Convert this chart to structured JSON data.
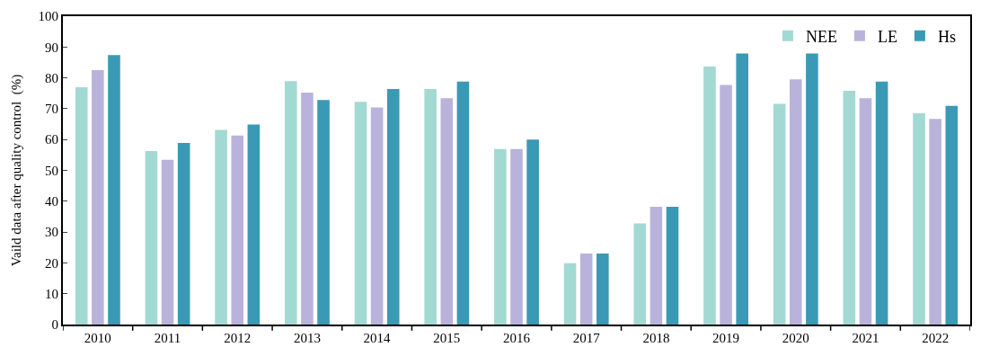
{
  "chart_data": {
    "type": "bar",
    "ylabel": "Vaild data after quality control  (%)",
    "categories": [
      "2010",
      "2011",
      "2012",
      "2013",
      "2014",
      "2015",
      "2016",
      "2017",
      "2018",
      "2019",
      "2020",
      "2021",
      "2022"
    ],
    "series": [
      {
        "name": "NEE",
        "color": "#a3d9d3",
        "values": [
          77,
          56.3,
          63.1,
          78.9,
          72.2,
          76.4,
          56.9,
          19.9,
          32.8,
          83.7,
          71.6,
          75.8,
          68.5
        ]
      },
      {
        "name": "LE",
        "color": "#b9b3dc",
        "values": [
          82.5,
          53.4,
          61.3,
          75.2,
          70.4,
          73.4,
          56.9,
          23,
          38.2,
          77.7,
          79.5,
          73.4,
          66.7
        ]
      },
      {
        "name": "Hs",
        "color": "#3a9ab5",
        "values": [
          87.4,
          58.9,
          64.9,
          72.8,
          76.4,
          78.8,
          60,
          23,
          38.2,
          87.9,
          87.9,
          78.8,
          70.9
        ]
      }
    ],
    "ylim": [
      0,
      100
    ],
    "yticks": [
      0,
      10,
      20,
      30,
      40,
      50,
      60,
      70,
      80,
      90,
      100
    ],
    "legend": "top right"
  }
}
